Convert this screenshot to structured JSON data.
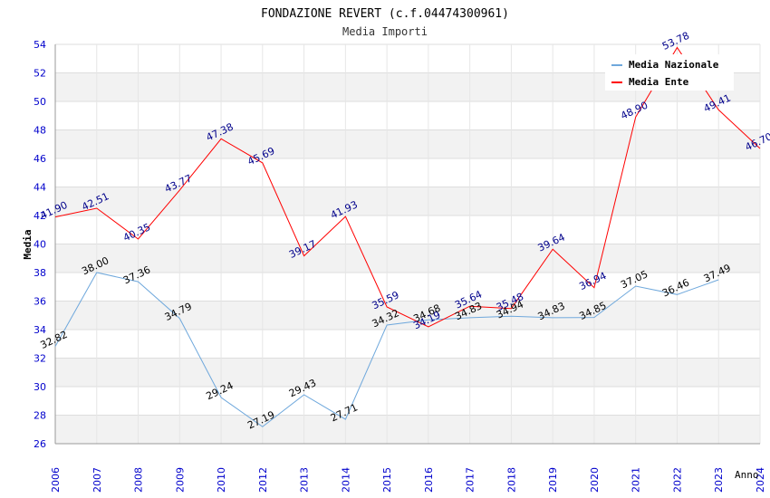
{
  "chart_data": {
    "type": "line",
    "title": "FONDAZIONE REVERT (c.f.04474300961)",
    "subtitle": "Media Importi",
    "xlabel": "Anno",
    "ylabel": "Media",
    "ylim": [
      26,
      54
    ],
    "y_ticks": [
      26,
      28,
      30,
      32,
      34,
      36,
      38,
      40,
      42,
      44,
      46,
      48,
      50,
      52,
      54
    ],
    "categories": [
      "2006",
      "2007",
      "2008",
      "2009",
      "2010",
      "2012",
      "2013",
      "2014",
      "2015",
      "2016",
      "2017",
      "2018",
      "2019",
      "2020",
      "2021",
      "2022",
      "2023",
      "2024"
    ],
    "grid": true,
    "legend_position": "top-right",
    "series": [
      {
        "name": "Media Nazionale",
        "color": "#6fa8dc",
        "label_color": "#000000",
        "values": [
          32.82,
          38.0,
          37.36,
          34.79,
          29.24,
          27.19,
          29.43,
          27.71,
          34.32,
          34.68,
          34.83,
          34.94,
          34.83,
          34.85,
          37.05,
          36.46,
          37.49,
          null
        ],
        "labels": [
          "32.82",
          "38.00",
          "37.36",
          "34.79",
          "29.24",
          "27.19",
          "29.43",
          "27.71",
          "34.32",
          "34.68",
          "34.83",
          "34.94",
          "34.83",
          "34.85",
          "37.05",
          "36.46",
          "37.49",
          ""
        ]
      },
      {
        "name": "Media Ente",
        "color": "#ff0000",
        "label_color": "#00008b",
        "values": [
          41.9,
          42.51,
          40.35,
          43.77,
          47.38,
          45.69,
          39.17,
          41.93,
          35.59,
          34.19,
          35.64,
          35.48,
          39.64,
          36.94,
          48.9,
          53.78,
          49.41,
          46.7
        ],
        "labels": [
          "41.90",
          "42.51",
          "40.35",
          "43.77",
          "47.38",
          "45.69",
          "39.17",
          "41.93",
          "35.59",
          "34.19",
          "35.64",
          "35.48",
          "39.64",
          "36.94",
          "48.90",
          "53.78",
          "49.41",
          "46.70"
        ]
      }
    ]
  }
}
